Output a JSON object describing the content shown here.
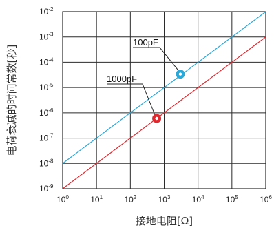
{
  "chart_data": {
    "type": "line",
    "xlabel": "接地电阻[Ω]",
    "ylabel": "电荷衰减的时间常数[秒]",
    "x_scale": "log",
    "y_scale": "log",
    "xlim": [
      1,
      1000000
    ],
    "ylim": [
      1e-09,
      0.01
    ],
    "x_ticks": [
      "10^0",
      "10^1",
      "10^2",
      "10^3",
      "10^4",
      "10^5",
      "10^6"
    ],
    "y_ticks": [
      "10^-9",
      "10^-8",
      "10^-7",
      "10^-6",
      "10^-5",
      "10^-4",
      "10^-3",
      "10^-2"
    ],
    "grid": true,
    "series": [
      {
        "name": "100pF",
        "color": "#2aa8d8",
        "x": [
          1,
          1000000
        ],
        "y": [
          1e-08,
          0.01
        ]
      },
      {
        "name": "1000pF",
        "color": "#e0282e",
        "x": [
          1,
          1000000
        ],
        "y": [
          1e-09,
          0.001
        ]
      }
    ],
    "annotations": [
      {
        "text": "100pF",
        "color": "#2aa8d8",
        "x": 3000,
        "y": 3.4e-05
      },
      {
        "text": "1000pF",
        "color": "#e0282e",
        "x": 600,
        "y": 6e-07
      }
    ]
  }
}
